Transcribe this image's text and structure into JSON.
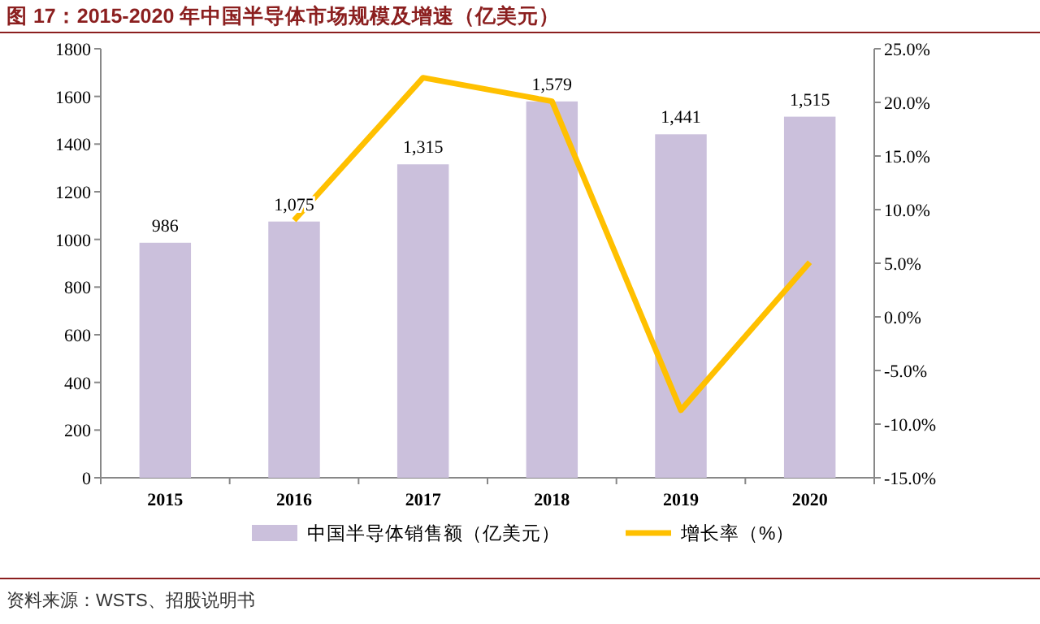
{
  "chart_data": {
    "type": "bar",
    "title": "图 17：2015-2020 年中国半导体市场规模及增速（亿美元）",
    "categories": [
      "2015",
      "2016",
      "2017",
      "2018",
      "2019",
      "2020"
    ],
    "series": [
      {
        "name": "中国半导体销售额（亿美元）",
        "color": "#cbc0dc",
        "values": [
          986,
          1075,
          1315,
          1579,
          1441,
          1515
        ],
        "value_labels": [
          "986",
          "1,075",
          "1,315",
          "1,579",
          "1,441",
          "1,515"
        ]
      },
      {
        "name": "增长率（%）",
        "type": "line",
        "axis": "y2",
        "color": "#ffc000",
        "values": [
          null,
          9.0,
          22.3,
          20.1,
          -8.7,
          5.1
        ]
      }
    ],
    "ylim": [
      0,
      1800
    ],
    "yticks": [
      0,
      200,
      400,
      600,
      800,
      1000,
      1200,
      1400,
      1600,
      1800
    ],
    "y2lim": [
      -15,
      25
    ],
    "y2ticks": [
      {
        "value": -15,
        "label": "-15.0%"
      },
      {
        "value": -10,
        "label": "-10.0%"
      },
      {
        "value": -5,
        "label": "-5.0%"
      },
      {
        "value": 0,
        "label": "0.0%"
      },
      {
        "value": 5,
        "label": "5.0%"
      },
      {
        "value": 10,
        "label": "10.0%"
      },
      {
        "value": 15,
        "label": "15.0%"
      },
      {
        "value": 20,
        "label": "20.0%"
      },
      {
        "value": 25,
        "label": "25.0%"
      }
    ],
    "grid": false,
    "legend": "bottom",
    "marker": "none",
    "line_style": "solid",
    "annotations": [
      "资料来源：WSTS、招股说明书"
    ]
  }
}
